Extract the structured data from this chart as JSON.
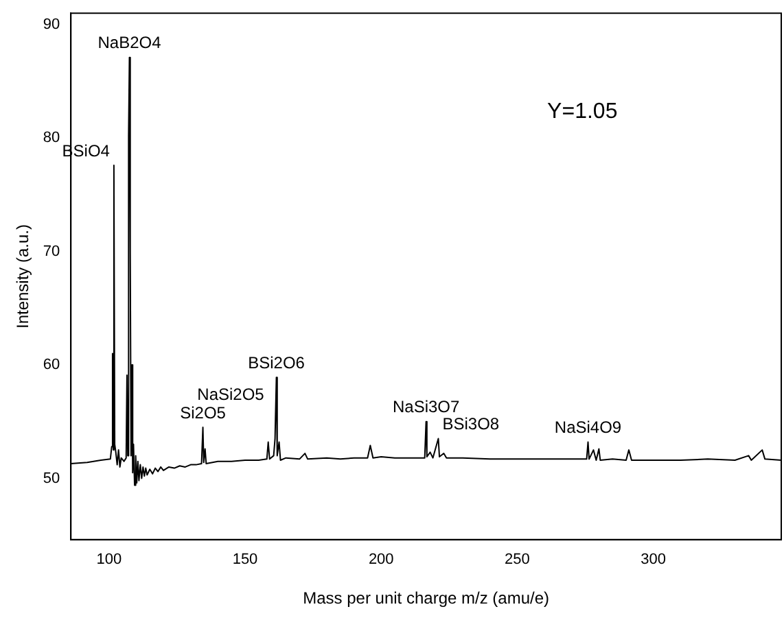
{
  "chart_data": {
    "type": "line",
    "xlabel": "Mass per unit charge m/z (amu/e)",
    "ylabel": "Intensity (a.u.)",
    "color": "#000000",
    "marker": "none",
    "line_style": "solid",
    "x": [
      86,
      92,
      97,
      100.5,
      101,
      101.3,
      101.6,
      101.8,
      102.1,
      102.5,
      103,
      103.5,
      104,
      104.5,
      105.5,
      106.3,
      106.6,
      106.9,
      107.2,
      107.5,
      107.8,
      108.1,
      108.4,
      108.7,
      109,
      109.4,
      109.8,
      110.2,
      110.6,
      111,
      111.5,
      112,
      112.5,
      113,
      113.5,
      114,
      115,
      116,
      117,
      118,
      119,
      120,
      122,
      124,
      126,
      128,
      130,
      132,
      134,
      134.5,
      134.8,
      135.3,
      135.7,
      140,
      145,
      150,
      155,
      158,
      158.5,
      159,
      160.5,
      161,
      161.5,
      161.8,
      162.5,
      163,
      165,
      170,
      172,
      173,
      180,
      185,
      190,
      195,
      196,
      197,
      200,
      205,
      210,
      216,
      216.5,
      216.8,
      218,
      219,
      221,
      221.4,
      223,
      224,
      230,
      240,
      250,
      260,
      270,
      275.5,
      276,
      276.4,
      278,
      279,
      280,
      280.5,
      285,
      290,
      291,
      292,
      300,
      310,
      320,
      330,
      335,
      336,
      340,
      341,
      347
    ],
    "values": [
      51.3,
      51.4,
      51.6,
      51.7,
      52.8,
      61.0,
      52.5,
      77.6,
      53.0,
      52.3,
      51.2,
      52.5,
      51.0,
      51.8,
      51.5,
      51.8,
      59.1,
      52,
      80.2,
      87.1,
      70,
      52,
      60,
      50.5,
      53,
      49.4,
      52,
      49.6,
      51.5,
      49.8,
      51.2,
      50.0,
      51,
      50.2,
      50.9,
      50.3,
      50.8,
      50.4,
      50.9,
      50.6,
      51,
      50.7,
      51,
      50.9,
      51.1,
      51.0,
      51.2,
      51.2,
      51.3,
      54.5,
      51.4,
      52.6,
      51.3,
      51.5,
      51.5,
      51.6,
      51.6,
      51.7,
      53.2,
      51.7,
      52,
      53.5,
      58.9,
      52,
      53.2,
      51.6,
      51.8,
      51.7,
      52.2,
      51.7,
      51.8,
      51.7,
      51.8,
      51.8,
      52.9,
      51.8,
      51.9,
      51.8,
      51.8,
      51.8,
      55.0,
      51.9,
      52.3,
      51.8,
      53.5,
      51.9,
      52.2,
      51.8,
      51.8,
      51.7,
      51.7,
      51.7,
      51.7,
      51.7,
      53.2,
      51.7,
      52.5,
      51.6,
      52.6,
      51.6,
      51.7,
      51.6,
      52.5,
      51.6,
      51.6,
      51.6,
      51.7,
      51.6,
      52.0,
      51.6,
      52.5,
      51.7,
      51.6
    ],
    "xlim": [
      86,
      347
    ],
    "ylim": [
      44.6,
      91
    ],
    "xticks": [
      100,
      150,
      200,
      250,
      300
    ],
    "yticks": [
      50,
      60,
      70,
      80,
      90
    ],
    "annotations": [
      {
        "text": "BSiO4",
        "x": 101.8,
        "y": 77.6
      },
      {
        "text": "NaB2O4",
        "x": 107.5,
        "y": 87.1
      },
      {
        "text": "Si2O5",
        "x": 134.5,
        "y": 54.5
      },
      {
        "text": "BSi2O6",
        "x": 161.5,
        "y": 58.9
      },
      {
        "text": "NaSi2O5",
        "x": 158.5,
        "y": 53.2
      },
      {
        "text": "NaSi3O7",
        "x": 216.5,
        "y": 55.0
      },
      {
        "text": "BSi3O8",
        "x": 221,
        "y": 53.5
      },
      {
        "text": "NaSi4O9",
        "x": 276,
        "y": 53.2
      },
      "Y=1.05"
    ]
  }
}
